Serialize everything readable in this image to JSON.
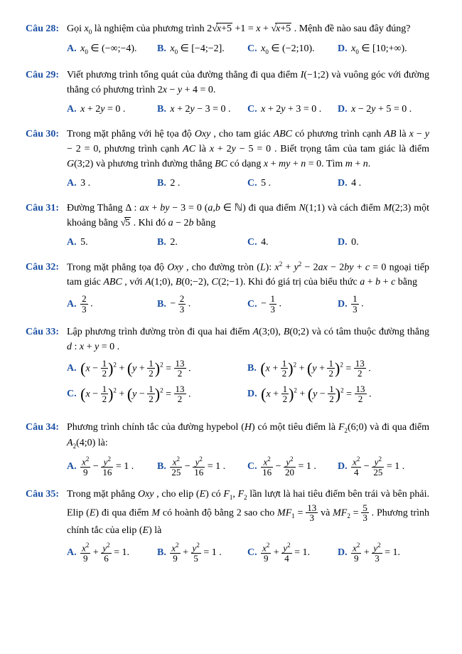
{
  "questions": [
    {
      "num": "Câu 28:",
      "prompt_html": "Gọi <span class='ital'>x</span><span class='sub'>0</span> là nghiệm của phương trình 2<span class='rad'></span><span class='sqrt'><span class='ital'>x</span>+5</span> +1 = <span class='ital'>x</span> + <span class='rad'></span><span class='sqrt'><span class='ital'>x</span>+5</span> . Mệnh đề nào sau đây đúng?",
      "opts": [
        "<span class='ital'>x</span><span class='sub'>0</span> ∈ (−∞;−4).",
        "<span class='ital'>x</span><span class='sub'>0</span> ∈ [−4;−2].",
        "<span class='ital'>x</span><span class='sub'>0</span> ∈ (−2;10).",
        "<span class='ital'>x</span><span class='sub'>0</span> ∈ [10;+∞)."
      ],
      "cols": 4
    },
    {
      "num": "Câu 29:",
      "prompt_html": "Viết phương trình tổng quát của đường thẳng đi qua điểm <span class='ital'>I</span>(−1;2) và vuông góc với đường thẳng có phương trình 2<span class='ital'>x</span> − <span class='ital'>y</span> + 4 = 0.",
      "opts": [
        "<span class='ital'>x</span> + 2<span class='ital'>y</span> = 0 .",
        "<span class='ital'>x</span> + 2<span class='ital'>y</span> − 3 = 0 .",
        "<span class='ital'>x</span> + 2<span class='ital'>y</span> + 3 = 0 .",
        "<span class='ital'>x</span> − 2<span class='ital'>y</span> + 5 = 0 ."
      ],
      "cols": 4
    },
    {
      "num": "Câu 30:",
      "prompt_html": "Trong mặt phẳng với hệ tọa độ <span class='ital'>Oxy</span> , cho tam giác <span class='ital'>ABC</span> có phương trình cạnh <span class='ital'>AB</span> là <span class='ital'>x</span> − <span class='ital'>y</span> − 2 = 0, phương trình cạnh <span class='ital'>AC</span> là <span class='ital'>x</span> + 2<span class='ital'>y</span> − 5 = 0 . Biết trọng tâm của tam giác là điểm <span class='ital'>G</span>(3;2) và phương trình đường thẳng <span class='ital'>BC</span> có dạng <span class='ital'>x</span> + <span class='ital'>my</span> + <span class='ital'>n</span> = 0. Tìm <span class='ital'>m</span> + <span class='ital'>n</span>.",
      "opts": [
        "3 .",
        "2 .",
        "5 .",
        "4 ."
      ],
      "cols": 4
    },
    {
      "num": "Câu 31:",
      "prompt_html": "Đường Thẳng Δ : <span class='ital'>ax</span> + <span class='ital'>by</span> − 3 = 0 (<span class='ital'>a</span>,<span class='ital'>b</span> ∈ ℕ) đi qua điểm <span class='ital'>N</span>(1;1) và cách điểm <span class='ital'>M</span>(2;3) một khoảng bằng <span class='rad'></span><span class='sqrt'>5</span> . Khi đó <span class='ital'>a</span> − 2<span class='ital'>b</span> bằng",
      "opts": [
        "5.",
        "2.",
        "4.",
        "0."
      ],
      "cols": 4
    },
    {
      "num": "Câu 32:",
      "prompt_html": "Trong mặt phẳng tọa độ <span class='ital'>Oxy</span> , cho đường tròn (<span class='ital'>L</span>): <span class='ital'>x</span><span class='sup'>2</span> + <span class='ital'>y</span><span class='sup'>2</span> − 2<span class='ital'>ax</span> − 2<span class='ital'>by</span> + <span class='ital'>c</span> = 0 ngoại tiếp tam giác <span class='ital'>ABC</span> , với <span class='ital'>A</span>(1;0), <span class='ital'>B</span>(0;−2), <span class='ital'>C</span>(2;−1). Khi đó giá trị của biểu thức <span class='ital'>a</span> + <span class='ital'>b</span> + <span class='ital'>c</span> bằng",
      "opts": [
        "<span class='frac'><span class='n'>2</span><span class='d'>3</span></span> .",
        "− <span class='frac'><span class='n'>2</span><span class='d'>3</span></span> .",
        "− <span class='frac'><span class='n'>1</span><span class='d'>3</span></span> .",
        "<span class='frac'><span class='n'>1</span><span class='d'>3</span></span> ."
      ],
      "cols": 4
    },
    {
      "num": "Câu 33:",
      "prompt_html": "Lập phương trình đường tròn đi qua hai điểm <span class='ital'>A</span>(3;0), <span class='ital'>B</span>(0;2) và có tâm thuộc đường thẳng <span class='ital'>d</span> : <span class='ital'>x</span> + <span class='ital'>y</span> = 0 .",
      "opts": [
        "<span class='bigp'>(</span><span class='ital'>x</span> − <span class='frac'><span class='n'>1</span><span class='d'>2</span></span><span class='bigp'>)</span><span class='sup'>2</span> + <span class='bigp'>(</span><span class='ital'>y</span> + <span class='frac'><span class='n'>1</span><span class='d'>2</span></span><span class='bigp'>)</span><span class='sup'>2</span> = <span class='frac'><span class='n'>13</span><span class='d'>2</span></span> .",
        "<span class='bigp'>(</span><span class='ital'>x</span> + <span class='frac'><span class='n'>1</span><span class='d'>2</span></span><span class='bigp'>)</span><span class='sup'>2</span> + <span class='bigp'>(</span><span class='ital'>y</span> + <span class='frac'><span class='n'>1</span><span class='d'>2</span></span><span class='bigp'>)</span><span class='sup'>2</span> = <span class='frac'><span class='n'>13</span><span class='d'>2</span></span> .",
        "<span class='bigp'>(</span><span class='ital'>x</span> − <span class='frac'><span class='n'>1</span><span class='d'>2</span></span><span class='bigp'>)</span><span class='sup'>2</span> + <span class='bigp'>(</span><span class='ital'>y</span> − <span class='frac'><span class='n'>1</span><span class='d'>2</span></span><span class='bigp'>)</span><span class='sup'>2</span> = <span class='frac'><span class='n'>13</span><span class='d'>2</span></span> .",
        "<span class='bigp'>(</span><span class='ital'>x</span> + <span class='frac'><span class='n'>1</span><span class='d'>2</span></span><span class='bigp'>)</span><span class='sup'>2</span> + <span class='bigp'>(</span><span class='ital'>y</span> − <span class='frac'><span class='n'>1</span><span class='d'>2</span></span><span class='bigp'>)</span><span class='sup'>2</span> = <span class='frac'><span class='n'>13</span><span class='d'>2</span></span> ."
      ],
      "cols": 2
    },
    {
      "num": "Câu 34:",
      "prompt_html": "Phương trình chính tắc của đường hypebol (<span class='ital'>H</span>) có một tiêu điểm là <span class='ital'>F</span><span class='sub'>2</span>(6;0) và đi qua điểm <span class='ital'>A</span><span class='sub'>2</span>(4;0) là:",
      "opts": [
        "<span class='frac'><span class='n'><span class='ital'>x</span><span class='sup'>2</span></span><span class='d'>9</span></span> − <span class='frac'><span class='n'><span class='ital'>y</span><span class='sup'>2</span></span><span class='d'>16</span></span> = 1 .",
        "<span class='frac'><span class='n'><span class='ital'>x</span><span class='sup'>2</span></span><span class='d'>25</span></span> − <span class='frac'><span class='n'><span class='ital'>y</span><span class='sup'>2</span></span><span class='d'>16</span></span> = 1 .",
        "<span class='frac'><span class='n'><span class='ital'>x</span><span class='sup'>2</span></span><span class='d'>16</span></span> − <span class='frac'><span class='n'><span class='ital'>y</span><span class='sup'>2</span></span><span class='d'>20</span></span> = 1 .",
        "<span class='frac'><span class='n'><span class='ital'>x</span><span class='sup'>2</span></span><span class='d'>4</span></span> − <span class='frac'><span class='n'><span class='ital'>y</span><span class='sup'>2</span></span><span class='d'>25</span></span> = 1 ."
      ],
      "cols": 4
    },
    {
      "num": "Câu 35:",
      "prompt_html": "Trong mặt phẳng <span class='ital'>Oxy</span> , cho elip (<span class='ital'>E</span>) có <span class='ital'>F</span><span class='sub'>1</span>, <span class='ital'>F</span><span class='sub'>2</span> lần lượt là hai tiêu điểm bên trái và bên phải. Elip (<span class='ital'>E</span>) đi qua điểm <span class='ital'>M</span> có hoành độ bằng 2 sao cho <span class='ital'>MF</span><span class='sub'>1</span> = <span class='frac'><span class='n'>13</span><span class='d'>3</span></span> và <span class='ital'>MF</span><span class='sub'>2</span> = <span class='frac'><span class='n'>5</span><span class='d'>3</span></span> . Phương trình chính tắc của elip (<span class='ital'>E</span>) là",
      "opts": [
        "<span class='frac'><span class='n'><span class='ital'>x</span><span class='sup'>2</span></span><span class='d'>9</span></span> + <span class='frac'><span class='n'><span class='ital'>y</span><span class='sup'>2</span></span><span class='d'>6</span></span> = 1.",
        "<span class='frac'><span class='n'><span class='ital'>x</span><span class='sup'>2</span></span><span class='d'>9</span></span> + <span class='frac'><span class='n'><span class='ital'>y</span><span class='sup'>2</span></span><span class='d'>5</span></span> = 1 .",
        "<span class='frac'><span class='n'><span class='ital'>x</span><span class='sup'>2</span></span><span class='d'>9</span></span> + <span class='frac'><span class='n'><span class='ital'>y</span><span class='sup'>2</span></span><span class='d'>4</span></span> = 1.",
        "<span class='frac'><span class='n'><span class='ital'>x</span><span class='sup'>2</span></span><span class='d'>9</span></span> + <span class='frac'><span class='n'><span class='ital'>y</span><span class='sup'>2</span></span><span class='d'>3</span></span> = 1."
      ],
      "cols": 4
    }
  ],
  "labels": [
    "A.",
    "B.",
    "C.",
    "D."
  ],
  "colors": {
    "label": "#1a4fa3",
    "text": "#000000",
    "bg": "#ffffff"
  },
  "font": {
    "family": "Times New Roman",
    "size_pt": 11
  }
}
